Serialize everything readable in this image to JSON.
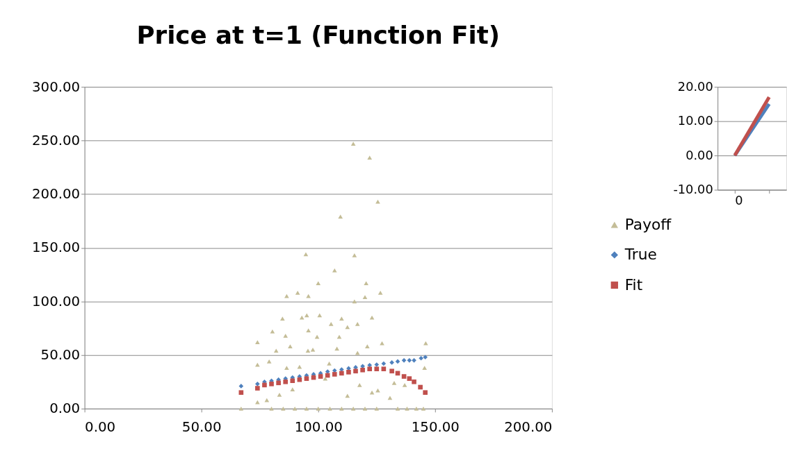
{
  "chart_data": [
    {
      "type": "scatter",
      "title": "Price at t=1 (Function Fit)",
      "xlim": [
        0,
        200
      ],
      "ylim": [
        0,
        300
      ],
      "xticks": [
        {
          "value": 0,
          "label": "0.00"
        },
        {
          "value": 50,
          "label": "50.00"
        },
        {
          "value": 100,
          "label": "100.00"
        },
        {
          "value": 150,
          "label": "150.00"
        },
        {
          "value": 200,
          "label": "200.00"
        }
      ],
      "yticks": [
        {
          "value": 0,
          "label": "0.00"
        },
        {
          "value": 50,
          "label": "50.00"
        },
        {
          "value": 100,
          "label": "100.00"
        },
        {
          "value": 150,
          "label": "150.00"
        },
        {
          "value": 200,
          "label": "200.00"
        },
        {
          "value": 250,
          "label": "250.00"
        },
        {
          "value": 300,
          "label": "300.00"
        }
      ],
      "grid": "y",
      "legend": "right",
      "series": [
        {
          "name": "Payoff",
          "color": "#c4bd97",
          "marker": "triangle",
          "x": [
            115,
            122,
            125.5,
            109.5,
            94.7,
            115.5,
            107,
            100,
            120.5,
            126.6,
            86.5,
            91.2,
            95.8,
            115.5,
            120,
            84.7,
            93,
            95.1,
            100.6,
            105.5,
            110,
            112.5,
            116.8,
            123,
            80.4,
            86,
            95.8,
            99.5,
            109,
            74,
            88,
            95.6,
            97.7,
            108,
            116.8,
            121,
            127.3,
            146,
            74,
            82,
            79,
            86.5,
            92,
            104.7,
            145.5,
            132.5,
            137,
            74,
            78,
            83.4,
            125.5,
            130.7,
            89,
            103,
            117.7,
            123,
            112.5,
            67,
            80,
            85,
            90,
            95,
            100,
            105,
            110,
            115,
            120,
            125,
            134,
            138,
            142,
            145
          ],
          "values": [
            247,
            234,
            193,
            179,
            144,
            143,
            129,
            117,
            117,
            108,
            105,
            108,
            105,
            100,
            104,
            84,
            85,
            87,
            87,
            79,
            84,
            76,
            79,
            85,
            72,
            68,
            73,
            67,
            67,
            62,
            58,
            54,
            55,
            56,
            52,
            58,
            61,
            61,
            41,
            54,
            44,
            38,
            39,
            42,
            38,
            24,
            22,
            6,
            8,
            13,
            17,
            10,
            18,
            28,
            22,
            15,
            12,
            0,
            0,
            0,
            0,
            0,
            0,
            0,
            0,
            0,
            0,
            0,
            0,
            0,
            0,
            0
          ]
        },
        {
          "name": "True",
          "color": "#4f81bd",
          "marker": "diamond",
          "x": [
            67,
            74,
            77,
            80,
            83,
            86,
            89,
            92,
            95,
            98,
            101,
            104,
            107,
            110,
            113,
            116,
            119,
            122,
            125,
            128,
            131.5,
            134,
            136.7,
            139,
            141,
            144,
            145.8
          ],
          "values": [
            21,
            23,
            25,
            26,
            27,
            28,
            29,
            30,
            31,
            32,
            33,
            34.5,
            35.5,
            36.5,
            37.5,
            38.5,
            39.5,
            40.5,
            41,
            42,
            43,
            44,
            45,
            45,
            45,
            47,
            48
          ]
        },
        {
          "name": "Fit",
          "color": "#c0504d",
          "marker": "square",
          "x": [
            67,
            74,
            77,
            80,
            83,
            86,
            89,
            92,
            95,
            98,
            101,
            104,
            107,
            110,
            113,
            116,
            119,
            122,
            125,
            128,
            131.5,
            134,
            136.7,
            139,
            141,
            143.7,
            145.8
          ],
          "values": [
            15,
            19,
            22,
            23,
            24,
            25,
            26,
            27,
            28,
            29,
            30,
            31,
            32,
            33,
            34,
            35,
            36,
            37,
            37,
            37,
            35,
            33,
            30,
            28,
            25,
            20,
            15
          ]
        }
      ]
    },
    {
      "type": "line",
      "categories": [
        "0",
        null
      ],
      "ylim": [
        -10,
        20
      ],
      "yticks": [
        {
          "value": -10,
          "label": "-10.00"
        },
        {
          "value": 0,
          "label": "0.00"
        },
        {
          "value": 10,
          "label": "10.00"
        },
        {
          "value": 20,
          "label": "20.00"
        }
      ],
      "grid": "y",
      "series": [
        {
          "color": "#4f81bd",
          "values": [
            0,
            15
          ]
        },
        {
          "color": "#c0504d",
          "values": [
            0,
            17
          ]
        }
      ]
    }
  ]
}
